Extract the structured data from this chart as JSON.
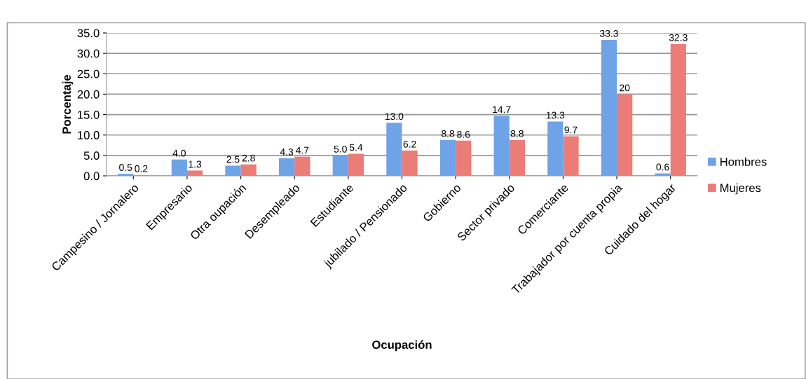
{
  "chart_data": {
    "type": "bar",
    "xlabel": "Ocupación",
    "ylabel": "Porcentaje",
    "categories": [
      "Campesino / Jornalero",
      "Empresario",
      "Otra oupación",
      "Desempleado",
      "Estudiante",
      "jubilado / Pensionado",
      "Gobierno",
      "Sector privado",
      "Comerciante",
      "Trabajador por cuenta propia",
      "Cuidado del hogar"
    ],
    "series": [
      {
        "name": "Hombres",
        "color": "#6fa3e8",
        "values": [
          0.5,
          4.0,
          2.5,
          4.3,
          5.0,
          13.0,
          8.8,
          14.7,
          13.3,
          33.3,
          0.6
        ],
        "value_labels": [
          "0.5",
          "4.0",
          "2.5",
          "4.3",
          "5.0",
          "13.0",
          "8.8",
          "14.7",
          "13.3",
          "33.3",
          "0.6"
        ]
      },
      {
        "name": "Mujeres",
        "color": "#ec7c78",
        "values": [
          0.2,
          1.3,
          2.8,
          4.7,
          5.4,
          6.2,
          8.6,
          8.8,
          9.7,
          20,
          32.3
        ],
        "value_labels": [
          "0.2",
          "1.3",
          "2.8",
          "4.7",
          "5.4",
          "6.2",
          "8.6",
          "8.8",
          "9.7",
          "20",
          "32.3"
        ]
      }
    ],
    "ylim": [
      0,
      35
    ],
    "yticks": [
      {
        "value": 0,
        "label": "0.0"
      },
      {
        "value": 5,
        "label": "5.0"
      },
      {
        "value": 10,
        "label": "10.0"
      },
      {
        "value": 15,
        "label": "15.0"
      },
      {
        "value": 20,
        "label": "20.0"
      },
      {
        "value": 25,
        "label": "25.0"
      },
      {
        "value": 30,
        "label": "30.0"
      },
      {
        "value": 35,
        "label": "35.0"
      }
    ],
    "grid": "y",
    "legend": "right"
  }
}
